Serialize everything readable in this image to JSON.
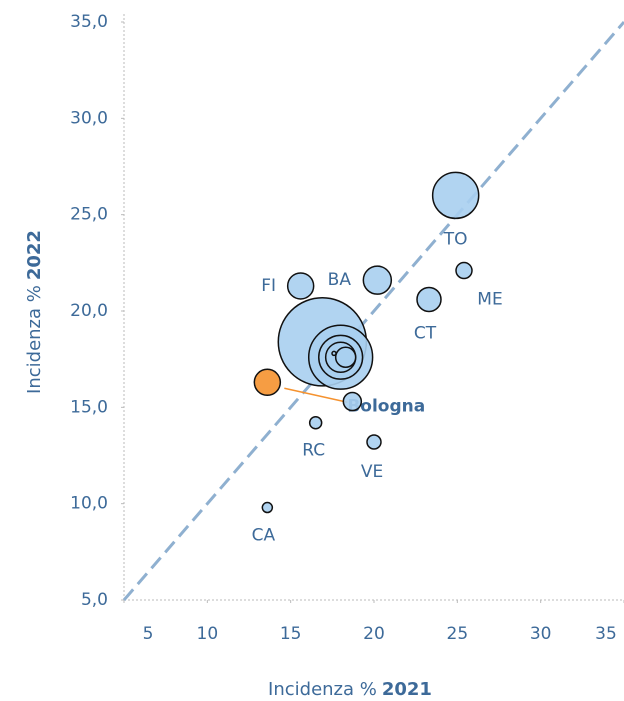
{
  "chart_data": {
    "type": "bubble",
    "xlabel": [
      "Incidenza %",
      "2021"
    ],
    "ylabel": [
      "Incidenza %",
      "2022"
    ],
    "xlim": [
      5,
      35
    ],
    "ylim": [
      5,
      35
    ],
    "xticks": [
      5,
      10,
      15,
      20,
      25,
      30,
      35
    ],
    "yticks": [
      {
        "value": 5,
        "label": "5,0"
      },
      {
        "value": 10,
        "label": "10,0"
      },
      {
        "value": 15,
        "label": "15,0"
      },
      {
        "value": 20,
        "label": "20,0"
      },
      {
        "value": 25,
        "label": "25,0"
      },
      {
        "value": 30,
        "label": "30,0"
      },
      {
        "value": 35,
        "label": "35,0"
      }
    ],
    "diagonal": true,
    "series": [
      {
        "labels": [
          null,
          null,
          null,
          null,
          "TO",
          "BA",
          "FI",
          "CT",
          "Bologna",
          null,
          "ME",
          "VE",
          "RC",
          "CA",
          null,
          null
        ],
        "x": [
          16.9,
          18.0,
          18.0,
          18.0,
          24.9,
          20.2,
          15.6,
          23.3,
          13.6,
          18.7,
          25.4,
          20.0,
          16.5,
          13.6,
          18.3,
          17.6
        ],
        "y": [
          18.4,
          17.6,
          17.6,
          17.6,
          26.0,
          21.6,
          21.3,
          20.6,
          16.3,
          15.3,
          22.1,
          13.2,
          14.2,
          9.8,
          17.6,
          17.8
        ],
        "sizes": [
          19.4,
          10.2,
          4.8,
          2.25,
          5.3,
          1.96,
          1.69,
          1.44,
          1.69,
          0.81,
          0.64,
          0.49,
          0.36,
          0.25,
          1.0,
          0.04
        ],
        "colors": [
          "#a9cfef",
          "#a9cfef",
          "#a9cfef",
          "#a9cfef",
          "#a9cfef",
          "#a9cfef",
          "#a9cfef",
          "#a9cfef",
          "#f5922f",
          "#a9cfef",
          "#a9cfef",
          "#a9cfef",
          "#a9cfef",
          "#a9cfef",
          "#a9cfef",
          "#a9cfef"
        ]
      }
    ],
    "highlight_color": "#f5922f"
  }
}
